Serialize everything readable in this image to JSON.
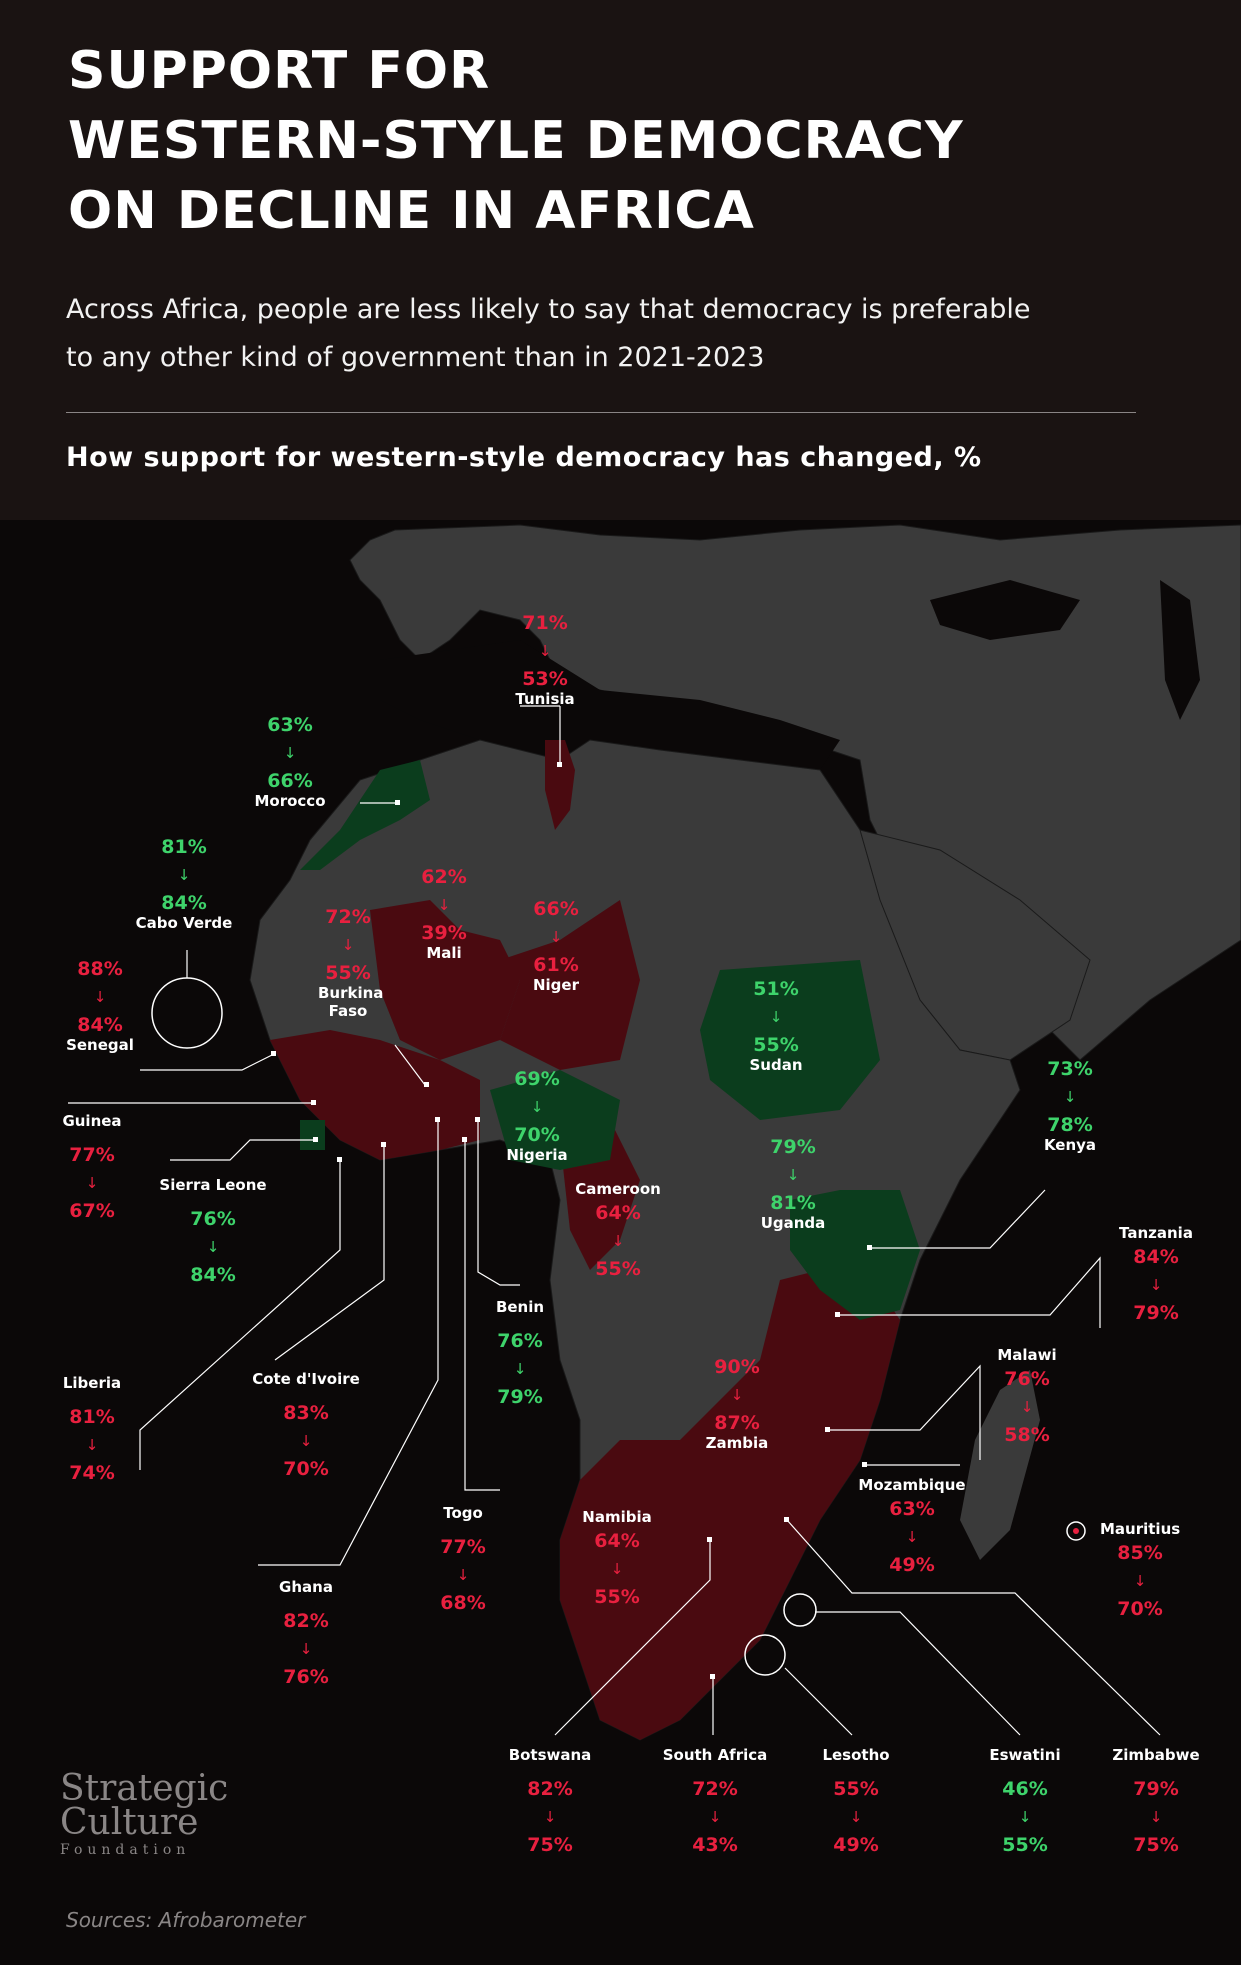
{
  "header": {
    "title_lines": [
      "SUPPORT FOR",
      "WESTERN-STYLE DEMOCRACY",
      "ON DECLINE IN AFRICA"
    ],
    "subtitle_lines": [
      "Across Africa, people are less likely to say that democracy is preferable",
      "to any other kind of government than in 2021-2023"
    ],
    "section_label": "How support for western-style democracy has changed, %"
  },
  "colors": {
    "decline": "#e8203f",
    "increase": "#3ed36b",
    "decline_fill": "#4a0a10",
    "increase_fill": "#0b3d1d",
    "land": "#3a3a3a",
    "background": "#0b0808"
  },
  "countries": [
    {
      "name": "Tunisia",
      "before": "71%",
      "after": "53%",
      "trend": "decline"
    },
    {
      "name": "Morocco",
      "before": "63%",
      "after": "66%",
      "trend": "increase"
    },
    {
      "name": "Cabo Verde",
      "before": "81%",
      "after": "84%",
      "trend": "increase"
    },
    {
      "name": "Senegal",
      "before": "88%",
      "after": "84%",
      "trend": "decline"
    },
    {
      "name": "Mali",
      "before": "62%",
      "after": "39%",
      "trend": "decline"
    },
    {
      "name": "Burkina Faso",
      "before": "72%",
      "after": "55%",
      "trend": "decline"
    },
    {
      "name": "Niger",
      "before": "66%",
      "after": "61%",
      "trend": "decline"
    },
    {
      "name": "Sudan",
      "before": "51%",
      "after": "55%",
      "trend": "increase"
    },
    {
      "name": "Kenya",
      "before": "73%",
      "after": "78%",
      "trend": "increase"
    },
    {
      "name": "Guinea",
      "before": "77%",
      "after": "67%",
      "trend": "decline"
    },
    {
      "name": "Sierra Leone",
      "before": "76%",
      "after": "84%",
      "trend": "increase"
    },
    {
      "name": "Nigeria",
      "before": "69%",
      "after": "70%",
      "trend": "increase"
    },
    {
      "name": "Cameroon",
      "before": "64%",
      "after": "55%",
      "trend": "decline"
    },
    {
      "name": "Uganda",
      "before": "79%",
      "after": "81%",
      "trend": "increase"
    },
    {
      "name": "Tanzania",
      "before": "84%",
      "after": "79%",
      "trend": "decline"
    },
    {
      "name": "Benin",
      "before": "76%",
      "after": "79%",
      "trend": "increase"
    },
    {
      "name": "Liberia",
      "before": "81%",
      "after": "74%",
      "trend": "decline"
    },
    {
      "name": "Cote d'Ivoire",
      "before": "83%",
      "after": "70%",
      "trend": "decline"
    },
    {
      "name": "Zambia",
      "before": "90%",
      "after": "87%",
      "trend": "decline"
    },
    {
      "name": "Malawi",
      "before": "76%",
      "after": "58%",
      "trend": "decline"
    },
    {
      "name": "Mozambique",
      "before": "63%",
      "after": "49%",
      "trend": "decline"
    },
    {
      "name": "Mauritius",
      "before": "85%",
      "after": "70%",
      "trend": "decline"
    },
    {
      "name": "Togo",
      "before": "77%",
      "after": "68%",
      "trend": "decline"
    },
    {
      "name": "Namibia",
      "before": "64%",
      "after": "55%",
      "trend": "decline"
    },
    {
      "name": "Ghana",
      "before": "82%",
      "after": "76%",
      "trend": "decline"
    },
    {
      "name": "Botswana",
      "before": "82%",
      "after": "75%",
      "trend": "decline"
    },
    {
      "name": "South Africa",
      "before": "72%",
      "after": "43%",
      "trend": "decline"
    },
    {
      "name": "Lesotho",
      "before": "55%",
      "after": "49%",
      "trend": "decline"
    },
    {
      "name": "Eswatini",
      "before": "46%",
      "after": "55%",
      "trend": "increase"
    },
    {
      "name": "Zimbabwe",
      "before": "79%",
      "after": "75%",
      "trend": "decline"
    }
  ],
  "arrow_glyph": "↓",
  "logo": {
    "line1": "Strategic",
    "line2": "Culture",
    "line3": "Foundation"
  },
  "source": "Sources: Afrobarometer"
}
